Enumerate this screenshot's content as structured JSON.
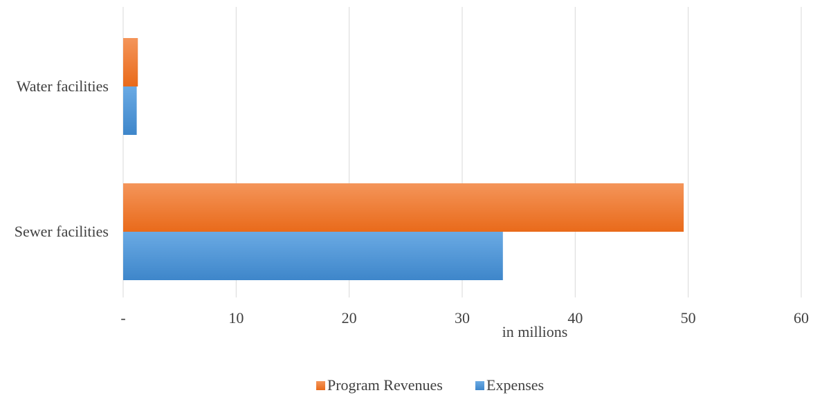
{
  "chart_data": {
    "type": "bar",
    "orientation": "horizontal",
    "categories": [
      "Water facilities",
      "Sewer facilities"
    ],
    "series": [
      {
        "name": "Program Revenues",
        "values": [
          1.3,
          49.6
        ],
        "color": "#ED7D31"
      },
      {
        "name": "Expenses",
        "values": [
          1.2,
          33.6
        ],
        "color": "#5B9BD5"
      }
    ],
    "xlim": [
      0,
      60
    ],
    "x_ticks": [
      0,
      10,
      20,
      30,
      40,
      50,
      60
    ],
    "x_tick_labels": [
      "-",
      "10",
      "20",
      "30",
      "40",
      "50",
      "60"
    ],
    "xlabel": "in millions",
    "title": "",
    "grid": "vertical",
    "legend": "bottom-center"
  }
}
